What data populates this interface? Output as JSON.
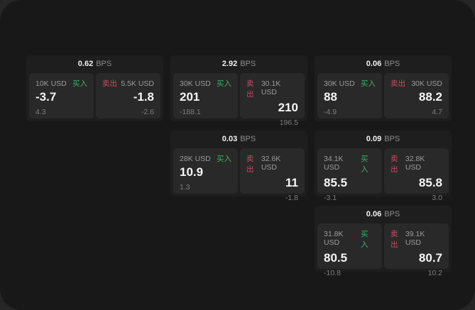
{
  "colors": {
    "outer_bg": "#262626",
    "surface_bg": "#181818",
    "card_bg": "#1e1e1e",
    "tile_bg": "#292929",
    "text_primary": "#f5f5f5",
    "text_muted": "#9b9b9b",
    "buy_green": "#3fae66",
    "sell_red": "#c94a67"
  },
  "labels": {
    "bps_unit": "BPS",
    "buy": "买入",
    "sell": "卖出"
  },
  "cards": [
    {
      "bps": "0.62",
      "buy": {
        "notional": "10K USD",
        "price": "-3.7",
        "delta": "4.3"
      },
      "sell": {
        "notional": "5.5K USD",
        "price": "-1.8",
        "delta": "-2.6"
      }
    },
    {
      "bps": "2.92",
      "buy": {
        "notional": "30K USD",
        "price": "201",
        "delta": "-188.1"
      },
      "sell": {
        "notional": "30.1K USD",
        "price": "210",
        "delta": "196.5"
      }
    },
    {
      "bps": "0.06",
      "buy": {
        "notional": "30K USD",
        "price": "88",
        "delta": "-4.9"
      },
      "sell": {
        "notional": "30K USD",
        "price": "88.2",
        "delta": "4.7"
      }
    },
    {
      "bps": "0.03",
      "buy": {
        "notional": "28K USD",
        "price": "10.9",
        "delta": "1.3"
      },
      "sell": {
        "notional": "32.6K USD",
        "price": "11",
        "delta": "-1.8"
      }
    },
    {
      "bps": "0.09",
      "buy": {
        "notional": "34.1K USD",
        "price": "85.5",
        "delta": "-3.1"
      },
      "sell": {
        "notional": "32.8K USD",
        "price": "85.8",
        "delta": "3.0"
      }
    },
    {
      "bps": "0.06",
      "buy": {
        "notional": "31.8K USD",
        "price": "80.5",
        "delta": "-10.8"
      },
      "sell": {
        "notional": "39.1K USD",
        "price": "80.7",
        "delta": "10.2"
      }
    }
  ]
}
